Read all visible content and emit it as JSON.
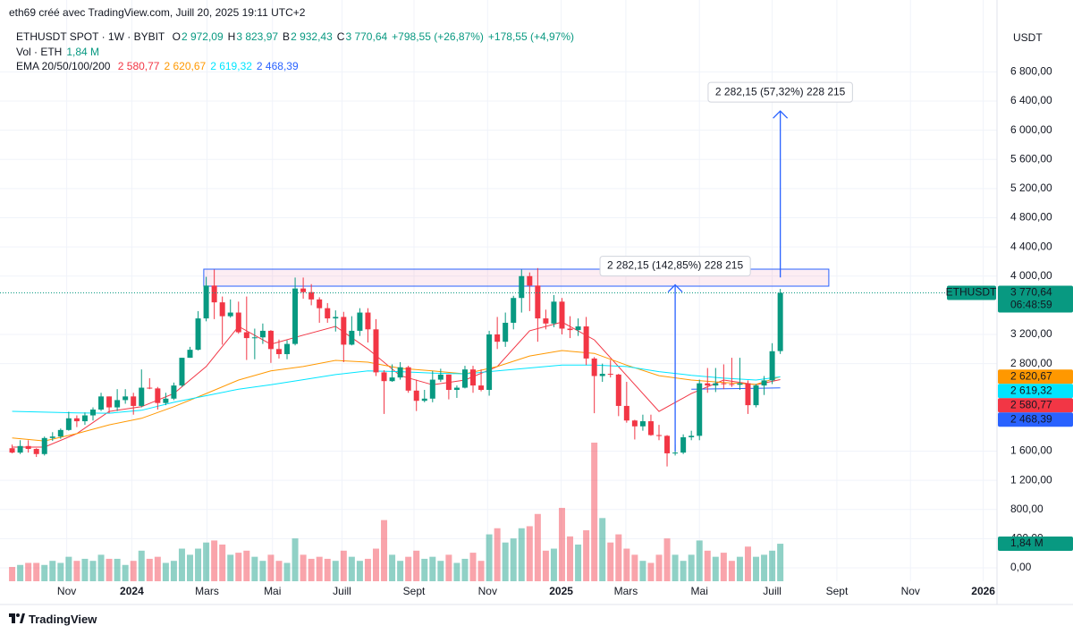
{
  "header": {
    "attribution": "eth69 créé avec TradingView.com, Juill 20, 2025 19:11 UTC+2"
  },
  "chart_data": {
    "type": "candlestick",
    "title": "ETHUSDT SPOT · 1W · BYBIT",
    "ohlc_legend": [
      {
        "key": "O",
        "text": "2 972,09"
      },
      {
        "key": "H",
        "text": "3 823,97"
      },
      {
        "key": "B",
        "text": "2 932,43"
      },
      {
        "key": "C",
        "text": "3 770,64"
      }
    ],
    "change_legend": [
      "+798,55 (+26,87%)",
      "+178,55 (+4,97%)"
    ],
    "volume_legend": {
      "label": "Vol · ETH",
      "value": "1,84 M"
    },
    "ema_legend": "EMA 20/50/100/200",
    "currency": "USDT",
    "up_color": "#089981",
    "down_color": "#f23645",
    "open": [
      1640,
      1580,
      1670,
      1630,
      1560,
      1780,
      1800,
      1890,
      2050,
      2010,
      2090,
      2170,
      2350,
      2200,
      2300,
      2350,
      2220,
      2470,
      2460,
      2260,
      2320,
      2500,
      2880,
      2990,
      3420,
      3870,
      3640,
      3450,
      3500,
      3230,
      3150,
      3160,
      3250,
      3000,
      2930,
      3070,
      3830,
      3780,
      3680,
      3560,
      3420,
      3440,
      3060,
      3250,
      3500,
      3270,
      2680,
      2560,
      2610,
      2750,
      2430,
      2290,
      2320,
      2580,
      2650,
      2440,
      2470,
      2720,
      2500,
      2440,
      3200,
      3100,
      3360,
      3700,
      4000,
      3870,
      3420,
      3350,
      3650,
      3280,
      3260,
      3310,
      2870,
      2630,
      2660,
      2650,
      2220,
      2020,
      1940,
      2010,
      1820,
      1810,
      1570,
      1580,
      1790,
      1810,
      2530,
      2500,
      2530,
      2520,
      2510,
      2530,
      2230,
      2500,
      2570,
      2972.09
    ],
    "high": [
      1690,
      1750,
      1750,
      1640,
      1800,
      1860,
      1910,
      2140,
      2090,
      2130,
      2200,
      2400,
      2350,
      2450,
      2450,
      2400,
      2720,
      2600,
      2480,
      2400,
      2540,
      2880,
      3030,
      3520,
      3990,
      4090,
      3720,
      3680,
      3650,
      3720,
      3280,
      3350,
      3260,
      3130,
      3120,
      3980,
      3980,
      3890,
      3710,
      3630,
      3530,
      3510,
      3450,
      3560,
      3560,
      3410,
      2710,
      2790,
      2820,
      2770,
      2580,
      2440,
      2700,
      2730,
      2650,
      2500,
      2770,
      2770,
      2720,
      3250,
      3440,
      3500,
      3730,
      4090,
      4050,
      4110,
      3540,
      3740,
      3700,
      3450,
      3420,
      3440,
      2890,
      2800,
      2850,
      2660,
      2550,
      2030,
      2100,
      2100,
      1960,
      1820,
      1690,
      1830,
      1880,
      2580,
      2740,
      2740,
      2790,
      2880,
      2880,
      2570,
      2520,
      2630,
      3080,
      3823.97
    ],
    "low": [
      1570,
      1560,
      1580,
      1520,
      1540,
      1740,
      1770,
      1880,
      1930,
      1960,
      2020,
      2150,
      2120,
      2150,
      2250,
      2100,
      2200,
      2450,
      2170,
      2230,
      2300,
      2480,
      2880,
      2980,
      3380,
      3410,
      3060,
      3430,
      3210,
      2850,
      2860,
      3070,
      2810,
      2870,
      2860,
      3050,
      3690,
      3600,
      3360,
      3360,
      3240,
      2820,
      3050,
      3180,
      3090,
      2630,
      2110,
      2550,
      2580,
      2400,
      2150,
      2270,
      2270,
      2550,
      2310,
      2330,
      2460,
      2400,
      2420,
      2360,
      3000,
      3030,
      3270,
      3500,
      3520,
      3100,
      3270,
      3300,
      3200,
      3150,
      3180,
      2780,
      2120,
      2550,
      2610,
      2080,
      1990,
      1760,
      1880,
      1810,
      1750,
      1390,
      1540,
      1560,
      1750,
      1750,
      2400,
      2410,
      2450,
      2480,
      2440,
      2110,
      2200,
      2370,
      2520,
      2932.43
    ],
    "close": [
      1580,
      1670,
      1630,
      1560,
      1780,
      1800,
      1890,
      2050,
      2010,
      2090,
      2170,
      2350,
      2200,
      2300,
      2350,
      2220,
      2470,
      2460,
      2260,
      2320,
      2500,
      2880,
      2990,
      3420,
      3870,
      3640,
      3450,
      3500,
      3230,
      3150,
      3160,
      3250,
      3000,
      2930,
      3070,
      3830,
      3780,
      3680,
      3560,
      3420,
      3440,
      3060,
      3250,
      3500,
      3270,
      2680,
      2560,
      2610,
      2750,
      2430,
      2290,
      2320,
      2580,
      2650,
      2440,
      2470,
      2720,
      2500,
      2440,
      3200,
      3100,
      3360,
      3700,
      4000,
      3870,
      3420,
      3350,
      3650,
      3280,
      3260,
      3310,
      2870,
      2630,
      2660,
      2650,
      2220,
      2020,
      1940,
      2010,
      1820,
      1810,
      1570,
      1580,
      1790,
      1810,
      2530,
      2500,
      2530,
      2520,
      2510,
      2530,
      2230,
      2500,
      2570,
      2970,
      3770.64
    ],
    "volume": [
      0.7,
      0.8,
      0.9,
      0.9,
      0.8,
      1.0,
      0.9,
      1.2,
      1.0,
      1.1,
      1.0,
      1.3,
      1.1,
      1.1,
      0.8,
      1.0,
      1.5,
      1.1,
      1.2,
      0.9,
      1.0,
      1.6,
      1.3,
      1.6,
      1.9,
      2.0,
      1.8,
      1.3,
      1.4,
      1.5,
      1.2,
      1.0,
      1.3,
      1.0,
      0.9,
      2.1,
      1.3,
      1.1,
      1.2,
      1.1,
      1.0,
      1.5,
      1.2,
      1.0,
      1.1,
      1.6,
      3.0,
      1.3,
      1.0,
      1.2,
      1.5,
      1.1,
      1.2,
      1.0,
      1.3,
      0.9,
      1.1,
      1.4,
      1.0,
      2.3,
      2.6,
      1.9,
      2.1,
      2.6,
      2.7,
      3.3,
      1.5,
      1.6,
      3.6,
      2.2,
      1.8,
      2.5,
      6.8,
      3.1,
      1.9,
      2.3,
      1.6,
      1.3,
      1.0,
      0.9,
      1.3,
      2.1,
      1.3,
      1.0,
      1.3,
      2.0,
      1.5,
      1.2,
      1.4,
      1.0,
      1.2,
      1.7,
      1.2,
      1.3,
      1.5,
      1.84
    ],
    "vlim": [
      0,
      27.2
    ],
    "ema": [
      {
        "color": "#f23645",
        "x": [
          0,
          4,
          8,
          12,
          16,
          20,
          24,
          28,
          32,
          36,
          40,
          44,
          48,
          52,
          56,
          60,
          64,
          68,
          72,
          76,
          80,
          84,
          88,
          92,
          95
        ],
        "values": [
          1655,
          1655,
          1840,
          2145,
          2210,
          2390,
          2760,
          3310,
          3065,
          3190,
          3310,
          3000,
          2635,
          2510,
          2575,
          2760,
          3250,
          3370,
          3125,
          2635,
          2145,
          2390,
          2575,
          2510,
          2580.77
        ],
        "value_label": "2 580,77"
      },
      {
        "color": "#ff9800",
        "x": [
          0,
          4,
          8,
          12,
          16,
          20,
          24,
          28,
          32,
          36,
          40,
          44,
          48,
          52,
          56,
          60,
          64,
          68,
          72,
          76,
          80,
          84,
          88,
          92,
          95
        ],
        "values": [
          1780,
          1740,
          1840,
          1960,
          2050,
          2210,
          2390,
          2575,
          2700,
          2760,
          2845,
          2820,
          2735,
          2700,
          2660,
          2760,
          2905,
          2980,
          2940,
          2780,
          2635,
          2575,
          2540,
          2515,
          2620.67
        ],
        "value_label": "2 620,67"
      },
      {
        "color": "#00e5ff",
        "x": [
          0,
          4,
          8,
          12,
          16,
          20,
          24,
          28,
          32,
          36,
          40,
          44,
          48,
          52,
          56,
          60,
          64,
          68,
          72,
          76,
          80,
          84,
          88,
          92,
          95
        ],
        "values": [
          2146,
          2135,
          2125,
          2120,
          2160,
          2270,
          2360,
          2450,
          2510,
          2580,
          2650,
          2700,
          2690,
          2670,
          2660,
          2700,
          2740,
          2780,
          2780,
          2760,
          2690,
          2640,
          2600,
          2575,
          2619.32
        ],
        "value_label": "2 619,32"
      },
      {
        "color": "#2962ff",
        "x": [
          84,
          88,
          92,
          95
        ],
        "values": [
          2450,
          2455,
          2462,
          2468.39
        ],
        "value_label": "2 468,39"
      }
    ],
    "xlim": [
      -1.5,
      121.8
    ],
    "ylim": [
      -184,
      7418
    ],
    "xticks": [
      {
        "value": 6.75,
        "label": "Nov"
      },
      {
        "value": 14.8,
        "label": "2024"
      },
      {
        "value": 24.1,
        "label": "Mars"
      },
      {
        "value": 32.2,
        "label": "Mai"
      },
      {
        "value": 40.8,
        "label": "Juill"
      },
      {
        "value": 49.7,
        "label": "Sept"
      },
      {
        "value": 58.8,
        "label": "Nov"
      },
      {
        "value": 67.9,
        "label": "2025"
      },
      {
        "value": 75.9,
        "label": "Mars"
      },
      {
        "value": 85.0,
        "label": "Mai"
      },
      {
        "value": 94.0,
        "label": "Juill"
      },
      {
        "value": 102.0,
        "label": "Sept"
      },
      {
        "value": 111.1,
        "label": "Nov"
      },
      {
        "value": 120.1,
        "label": "2026"
      }
    ],
    "yticks": [
      {
        "value": 0,
        "label": "0,00"
      },
      {
        "value": 400,
        "label": "400,00"
      },
      {
        "value": 800,
        "label": "800,00"
      },
      {
        "value": 1200,
        "label": "1 200,00"
      },
      {
        "value": 1600,
        "label": "1 600,00"
      },
      {
        "value": 2800,
        "label": "2 800,00"
      },
      {
        "value": 3200,
        "label": "3 200,00"
      },
      {
        "value": 4000,
        "label": "4 000,00"
      },
      {
        "value": 4400,
        "label": "4 400,00"
      },
      {
        "value": 4800,
        "label": "4 800,00"
      },
      {
        "value": 5200,
        "label": "5 200,00"
      },
      {
        "value": 5600,
        "label": "5 600,00"
      },
      {
        "value": 6000,
        "label": "6 000,00"
      },
      {
        "value": 6400,
        "label": "6 400,00"
      },
      {
        "value": 6800,
        "label": "6 800,00"
      }
    ],
    "grid": true,
    "last_price": {
      "symbol": "ETHUSDT",
      "label": "3 770,64",
      "countdown": "06:48:59"
    },
    "zone": {
      "from": 23.7,
      "to": 101,
      "high": 4095,
      "low": 3862
    },
    "measures": [
      {
        "x": 82,
        "from": 1597.6,
        "to": 3879.75,
        "label": "2 282,15 (142,85%) 228 215"
      },
      {
        "x": 95,
        "from": 3981.4,
        "to": 6263.55,
        "label": "2 282,15 (57,32%) 228 215"
      }
    ]
  },
  "footer": {
    "brand": "TradingView"
  }
}
